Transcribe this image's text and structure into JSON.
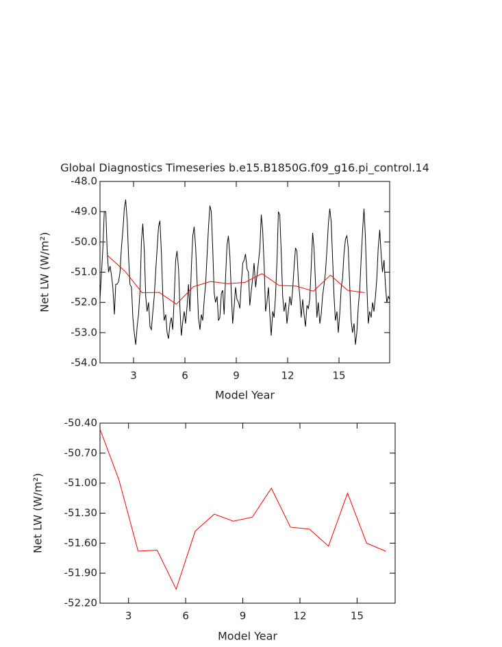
{
  "chart_data": [
    {
      "type": "line",
      "title": "Global Diagnostics Timeseries b.e15.B1850G.f09_g16.pi_control.14",
      "xlabel": "Model Year",
      "ylabel": "Net LW (W/m²)",
      "xlim": [
        1.04,
        17.96
      ],
      "xticks": [
        3,
        6,
        9,
        12,
        15
      ],
      "ylim": [
        -54,
        -48
      ],
      "yticks": [
        {
          "value": -48,
          "label": "-48.0"
        },
        {
          "value": -49,
          "label": "-49.0"
        },
        {
          "value": -50,
          "label": "-50.0"
        },
        {
          "value": -51,
          "label": "-51.0"
        },
        {
          "value": -52,
          "label": "-52.0"
        },
        {
          "value": -53,
          "label": "-53.0"
        },
        {
          "value": -54,
          "label": "-54.0"
        }
      ],
      "series": [
        {
          "color": "#000000",
          "x": [
            1.04,
            1.13,
            1.21,
            1.29,
            1.38,
            1.46,
            1.54,
            1.63,
            1.71,
            1.79,
            1.88,
            1.96,
            2.04,
            2.13,
            2.21,
            2.29,
            2.38,
            2.46,
            2.54,
            2.63,
            2.71,
            2.79,
            2.88,
            2.96,
            3.04,
            3.13,
            3.21,
            3.29,
            3.38,
            3.46,
            3.54,
            3.63,
            3.71,
            3.79,
            3.88,
            3.96,
            4.04,
            4.13,
            4.21,
            4.29,
            4.38,
            4.46,
            4.54,
            4.63,
            4.71,
            4.79,
            4.88,
            4.96,
            5.04,
            5.13,
            5.21,
            5.29,
            5.38,
            5.46,
            5.54,
            5.63,
            5.71,
            5.79,
            5.88,
            5.96,
            6.04,
            6.13,
            6.21,
            6.29,
            6.38,
            6.46,
            6.54,
            6.63,
            6.71,
            6.79,
            6.88,
            6.96,
            7.04,
            7.13,
            7.21,
            7.29,
            7.38,
            7.46,
            7.54,
            7.63,
            7.71,
            7.79,
            7.88,
            7.96,
            8.04,
            8.13,
            8.21,
            8.29,
            8.38,
            8.46,
            8.54,
            8.63,
            8.71,
            8.79,
            8.88,
            8.96,
            9.04,
            9.13,
            9.21,
            9.29,
            9.38,
            9.46,
            9.54,
            9.63,
            9.71,
            9.79,
            9.88,
            9.96,
            10.04,
            10.13,
            10.21,
            10.29,
            10.38,
            10.46,
            10.54,
            10.63,
            10.71,
            10.79,
            10.88,
            10.96,
            11.04,
            11.13,
            11.21,
            11.29,
            11.38,
            11.46,
            11.54,
            11.63,
            11.71,
            11.79,
            11.88,
            11.96,
            12.04,
            12.13,
            12.21,
            12.29,
            12.38,
            12.46,
            12.54,
            12.63,
            12.71,
            12.79,
            12.88,
            12.96,
            13.04,
            13.13,
            13.21,
            13.29,
            13.38,
            13.46,
            13.54,
            13.63,
            13.71,
            13.79,
            13.88,
            13.96,
            14.04,
            14.13,
            14.21,
            14.29,
            14.38,
            14.46,
            14.54,
            14.63,
            14.71,
            14.79,
            14.88,
            14.96,
            15.04,
            15.13,
            15.21,
            15.29,
            15.38,
            15.46,
            15.54,
            15.63,
            15.71,
            15.79,
            15.88,
            15.96,
            16.04,
            16.13,
            16.21,
            16.29,
            16.38,
            16.46,
            16.54,
            16.63,
            16.71,
            16.79,
            16.88,
            16.96,
            17.04,
            17.13,
            17.21,
            17.29,
            17.38,
            17.46,
            17.54,
            17.63,
            17.71,
            17.79,
            17.88,
            17.96
          ],
          "values": [
            -51.9,
            -51.0,
            -50.2,
            -49.0,
            -49.0,
            -50.3,
            -51.0,
            -50.8,
            -51.1,
            -51.5,
            -52.4,
            -51.4,
            -51.4,
            -51.3,
            -51.0,
            -50.2,
            -49.6,
            -48.9,
            -48.6,
            -49.3,
            -50.5,
            -51.4,
            -51.5,
            -52.5,
            -53.0,
            -53.4,
            -52.8,
            -52.4,
            -51.6,
            -50.0,
            -49.4,
            -50.3,
            -51.8,
            -52.3,
            -52.0,
            -52.8,
            -52.9,
            -52.3,
            -51.8,
            -51.0,
            -50.2,
            -49.5,
            -49.3,
            -50.4,
            -51.8,
            -52.6,
            -52.4,
            -53.0,
            -53.2,
            -52.7,
            -52.5,
            -52.9,
            -51.8,
            -50.6,
            -50.3,
            -50.9,
            -52.2,
            -53.1,
            -52.6,
            -52.3,
            -52.7,
            -52.1,
            -51.4,
            -52.3,
            -50.8,
            -49.8,
            -49.5,
            -50.2,
            -51.3,
            -52.5,
            -52.9,
            -52.4,
            -52.6,
            -51.9,
            -51.4,
            -50.5,
            -49.5,
            -48.8,
            -49.0,
            -50.3,
            -51.7,
            -52.0,
            -51.8,
            -52.6,
            -52.5,
            -51.7,
            -51.6,
            -52.4,
            -51.1,
            -50.1,
            -49.8,
            -50.5,
            -51.7,
            -52.7,
            -52.1,
            -51.5,
            -51.9,
            -52.0,
            -52.2,
            -51.4,
            -50.7,
            -50.6,
            -50.4,
            -50.9,
            -51.0,
            -52.1,
            -51.6,
            -51.2,
            -50.7,
            -51.5,
            -51.1,
            -50.7,
            -50.2,
            -49.1,
            -49.6,
            -50.8,
            -52.3,
            -52.0,
            -51.5,
            -52.4,
            -53.1,
            -52.3,
            -52.5,
            -51.8,
            -50.6,
            -49.0,
            -49.1,
            -50.4,
            -51.8,
            -52.3,
            -52.0,
            -52.7,
            -52.3,
            -51.8,
            -52.1,
            -51.6,
            -50.8,
            -50.2,
            -50.3,
            -51.3,
            -51.8,
            -52.5,
            -51.9,
            -52.4,
            -52.8,
            -52.1,
            -52.2,
            -51.9,
            -50.8,
            -49.7,
            -50.2,
            -51.4,
            -52.5,
            -52.0,
            -52.7,
            -52.4,
            -51.8,
            -51.4,
            -51.0,
            -50.3,
            -49.4,
            -48.9,
            -49.3,
            -50.6,
            -51.8,
            -52.6,
            -52.3,
            -53.0,
            -52.4,
            -51.5,
            -51.2,
            -50.4,
            -49.9,
            -49.8,
            -50.2,
            -51.5,
            -52.6,
            -53.0,
            -52.7,
            -53.4,
            -53.0,
            -52.1,
            -51.6,
            -50.6,
            -49.6,
            -48.9,
            -49.8,
            -51.5,
            -52.7,
            -52.3,
            -52.5,
            -52.0,
            -52.3,
            -51.8,
            -51.2,
            -50.2,
            -49.6,
            -50.4,
            -51.0,
            -50.6,
            -51.4,
            -52.0,
            -51.8,
            -51.9
          ]
        },
        {
          "color": "#ff0000",
          "x": [
            1.5,
            2.5,
            3.5,
            4.5,
            5.5,
            6.5,
            7.5,
            8.5,
            9.5,
            10.5,
            11.5,
            12.5,
            13.5,
            14.5,
            15.5,
            16.5
          ],
          "values": [
            -50.46,
            -50.97,
            -51.68,
            -51.67,
            -52.06,
            -51.48,
            -51.31,
            -51.38,
            -51.34,
            -51.05,
            -51.44,
            -51.46,
            -51.63,
            -51.1,
            -51.6,
            -51.68
          ]
        }
      ]
    },
    {
      "type": "line",
      "xlabel": "Model Year",
      "ylabel": "Net LW (W/m²)",
      "xlim": [
        1.5,
        17
      ],
      "xticks": [
        3,
        6,
        9,
        12,
        15
      ],
      "ylim": [
        -52.2,
        -50.4
      ],
      "yticks": [
        {
          "value": -50.4,
          "label": "-50.40"
        },
        {
          "value": -50.7,
          "label": "-50.70"
        },
        {
          "value": -51,
          "label": "-51.00"
        },
        {
          "value": -51.3,
          "label": "-51.30"
        },
        {
          "value": -51.6,
          "label": "-51.60"
        },
        {
          "value": -51.9,
          "label": "-51.90"
        },
        {
          "value": -52.2,
          "label": "-52.20"
        }
      ],
      "series": [
        {
          "color": "#ff0000",
          "x": [
            1.5,
            2.5,
            3.5,
            4.5,
            5.5,
            6.5,
            7.5,
            8.5,
            9.5,
            10.5,
            11.5,
            12.5,
            13.5,
            14.5,
            15.5,
            16.5
          ],
          "values": [
            -50.46,
            -50.97,
            -51.68,
            -51.67,
            -52.06,
            -51.48,
            -51.31,
            -51.38,
            -51.34,
            -51.05,
            -51.44,
            -51.46,
            -51.63,
            -51.1,
            -51.6,
            -51.68
          ]
        }
      ]
    }
  ]
}
